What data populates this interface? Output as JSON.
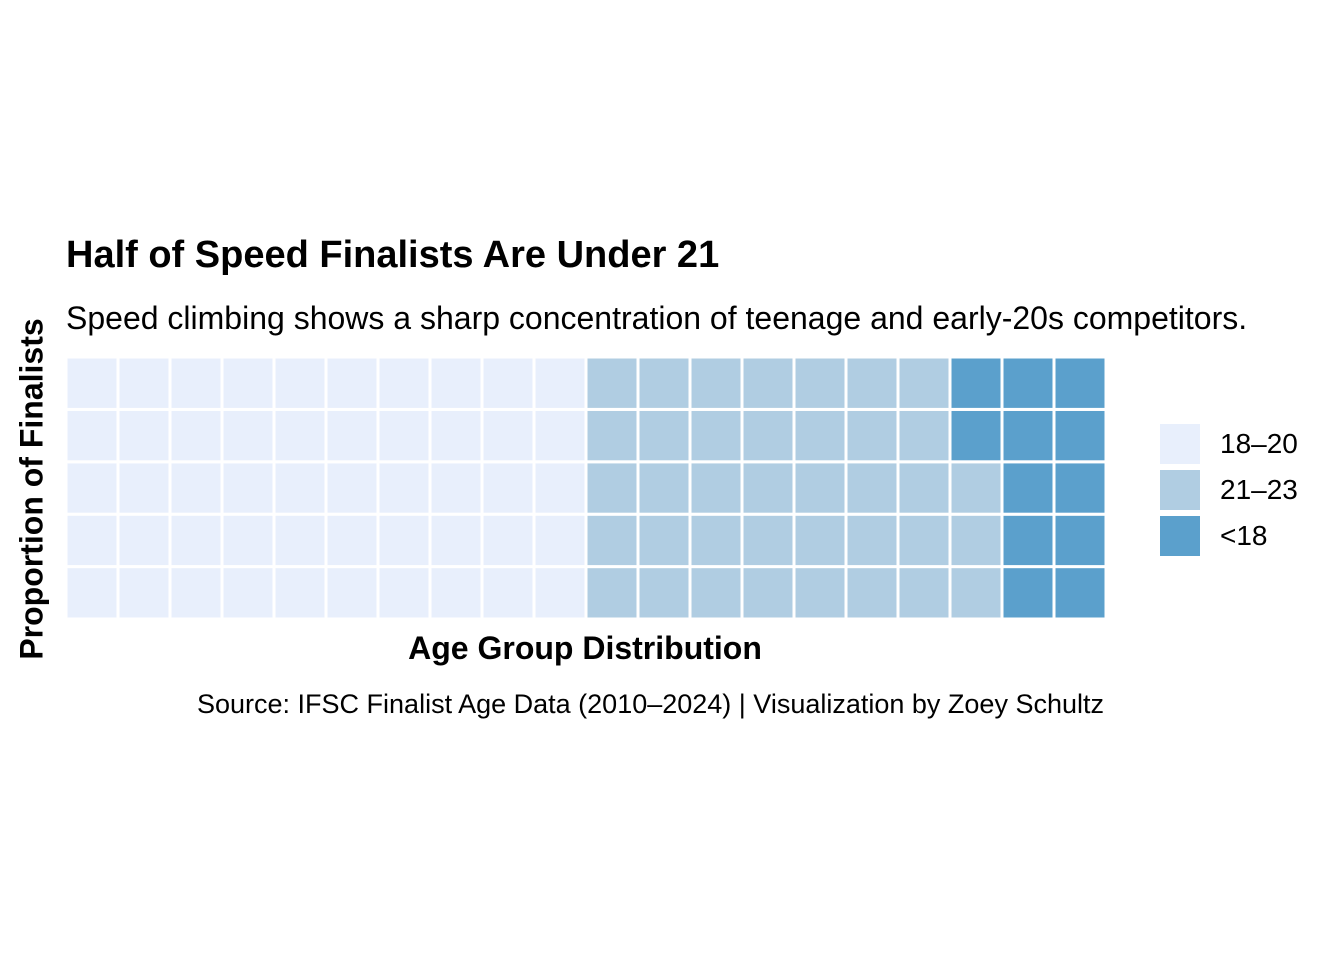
{
  "chart_data": {
    "type": "waffle",
    "title": "Half of Speed Finalists Are Under 21",
    "subtitle": "Speed climbing shows a sharp concentration of teenage and early-20s competitors.",
    "xlabel": "Age Group Distribution",
    "ylabel": "Proportion of Finalists",
    "caption": "Source: IFSC Finalist Age Data (2010–2024) | Visualization by Zoey Schultz",
    "grid": {
      "rows": 5,
      "cols": 20
    },
    "categories": [
      "18–20",
      "21–23",
      "<18"
    ],
    "values": [
      50,
      38,
      12
    ],
    "colors": [
      "#e8effc",
      "#b0cde2",
      "#5ba0cc"
    ],
    "legend_position": "right"
  }
}
